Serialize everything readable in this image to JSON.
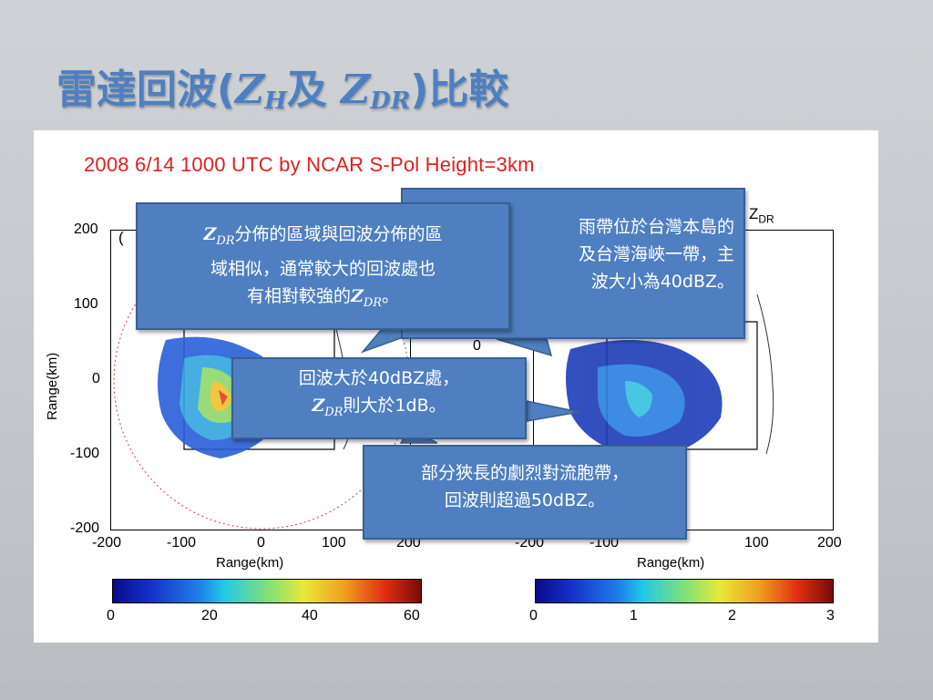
{
  "slide": {
    "title_prefix": "雷達回波(",
    "title_zh_sym": "Z",
    "title_zh_sub": "H",
    "title_mid": "及 ",
    "title_zdr_sym": "Z",
    "title_zdr_sub": "DR",
    "title_suffix": ")比較"
  },
  "figure": {
    "header": "2008  6/14  1000  UTC  by  NCAR S-Pol  Height=3km",
    "right_panel_label": "Z",
    "right_panel_label_sub": "DR",
    "left_panel_label": "(",
    "y_axis_label": "Range(km)",
    "x_axis_label_left": "Range(km)",
    "x_axis_label_right": "Range(km)",
    "y_ticks": [
      "200",
      "100",
      "0",
      "-100",
      "-200"
    ],
    "x_ticks_left": [
      "-200",
      "-100",
      "0",
      "100",
      "200"
    ],
    "x_ticks_right": [
      "-200",
      "-100",
      "100",
      "200"
    ],
    "colorbar_left_ticks": [
      "0",
      "20",
      "40",
      "60"
    ],
    "colorbar_right_ticks": [
      "0",
      "1",
      "2",
      "3"
    ],
    "right_axis_partial_tick": "0"
  },
  "callouts": {
    "c1": {
      "sym": "Z",
      "sub": "DR",
      "line1_rest": "分佈的區域與回波分佈的區",
      "line2": "域相似，通常較大的回波處也",
      "line3_pre": "有相對較強的",
      "line3_sym": "Z",
      "line3_sub": "DR",
      "line3_post": "。"
    },
    "c2": {
      "line1": "雨帶位於台灣本島的",
      "line2": "及台灣海峽一帶，主",
      "line3": "波大小為40dBZ。"
    },
    "c3": {
      "line1": "回波大於40dBZ處，",
      "line2_sym": "Z",
      "line2_sub": "DR",
      "line2_rest": "則大於1dB。"
    },
    "c4": {
      "line1": "部分狹長的劇烈對流胞帶，",
      "line2": "回波則超過50dBZ。"
    }
  },
  "colors": {
    "title": "#4f7fc0",
    "callout_bg": "#4f7fc0",
    "header_red": "#e02020"
  }
}
